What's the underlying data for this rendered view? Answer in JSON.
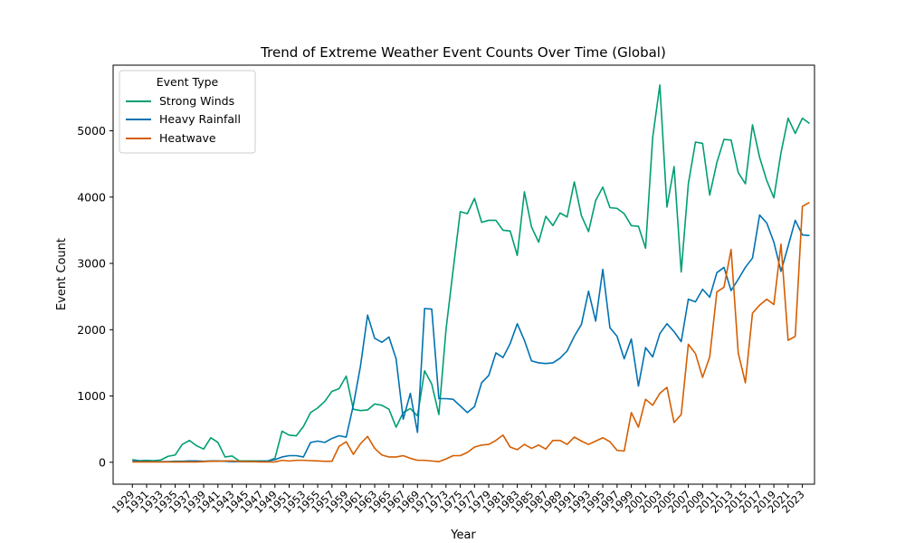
{
  "chart_data": {
    "type": "line",
    "title": "Trend of Extreme Weather Event Counts Over Time (Global)",
    "xlabel": "Year",
    "ylabel": "Event Count",
    "xlim": [
      1926.3,
      2024.7
    ],
    "ylim": [
      -330,
      5990
    ],
    "yticks": [
      0,
      1000,
      2000,
      3000,
      4000,
      5000
    ],
    "grid": false,
    "legend": {
      "title": "Event Type",
      "placement": "top-left"
    },
    "x_start": 1929,
    "x_end": 2023,
    "series": [
      {
        "name": "Strong Winds",
        "color": "#009e73",
        "values": [
          40,
          25,
          30,
          25,
          35,
          90,
          110,
          270,
          330,
          250,
          200,
          370,
          300,
          80,
          95,
          20,
          20,
          20,
          20,
          20,
          60,
          470,
          410,
          400,
          540,
          750,
          820,
          920,
          1070,
          1110,
          1300,
          800,
          780,
          790,
          880,
          860,
          800,
          530,
          750,
          810,
          700,
          1380,
          1180,
          720,
          2000,
          2900,
          3780,
          3750,
          3980,
          3620,
          3650,
          3650,
          3500,
          3490,
          3120,
          4080,
          3550,
          3320,
          3710,
          3570,
          3760,
          3700,
          4230,
          3720,
          3480,
          3950,
          4150,
          3840,
          3830,
          3750,
          3570,
          3560,
          3230,
          4900,
          5690,
          3850,
          4460,
          2870,
          4200,
          4830,
          4810,
          4030,
          4520,
          4870,
          4860,
          4370,
          4200,
          5090,
          4600,
          4250,
          3990,
          4670,
          5190,
          4960,
          5190,
          5110
        ]
      },
      {
        "name": "Heavy Rainfall",
        "color": "#0072b2",
        "values": [
          20,
          15,
          10,
          10,
          10,
          10,
          15,
          15,
          20,
          20,
          15,
          20,
          20,
          15,
          10,
          10,
          10,
          10,
          15,
          20,
          40,
          80,
          100,
          100,
          80,
          300,
          320,
          300,
          360,
          400,
          380,
          860,
          1450,
          2220,
          1870,
          1810,
          1890,
          1560,
          650,
          1040,
          450,
          2320,
          2310,
          960,
          960,
          950,
          850,
          750,
          840,
          1200,
          1310,
          1650,
          1580,
          1790,
          2090,
          1840,
          1530,
          1500,
          1490,
          1500,
          1570,
          1680,
          1900,
          2080,
          2580,
          2130,
          2910,
          2030,
          1900,
          1560,
          1860,
          1150,
          1730,
          1590,
          1940,
          2090,
          1970,
          1820,
          2460,
          2420,
          2610,
          2490,
          2860,
          2940,
          2590,
          2760,
          2940,
          3080,
          3730,
          3610,
          3320,
          2880,
          3260,
          3650,
          3430,
          3420
        ]
      },
      {
        "name": "Heatwave",
        "color": "#d55e00",
        "values": [
          5,
          5,
          5,
          5,
          5,
          5,
          5,
          5,
          5,
          5,
          10,
          15,
          15,
          20,
          20,
          15,
          10,
          10,
          5,
          5,
          5,
          30,
          20,
          30,
          30,
          25,
          20,
          15,
          15,
          240,
          310,
          120,
          280,
          390,
          210,
          110,
          80,
          80,
          100,
          60,
          30,
          30,
          20,
          10,
          50,
          100,
          100,
          150,
          230,
          260,
          270,
          330,
          410,
          230,
          190,
          270,
          210,
          260,
          200,
          330,
          330,
          270,
          380,
          320,
          270,
          320,
          370,
          310,
          180,
          170,
          750,
          530,
          950,
          860,
          1040,
          1130,
          600,
          720,
          1780,
          1640,
          1280,
          1590,
          2570,
          2640,
          3210,
          1650,
          1200,
          2250,
          2370,
          2460,
          2380,
          3290,
          1840,
          1900,
          3860,
          3920
        ]
      }
    ]
  }
}
